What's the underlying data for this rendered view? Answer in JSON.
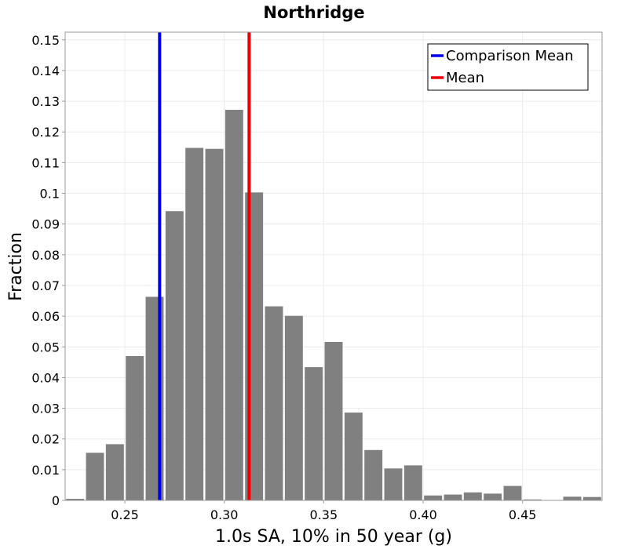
{
  "chart_data": {
    "type": "bar",
    "title": "Northridge",
    "xlabel": "1.0s SA, 10% in 50 year (g)",
    "ylabel": "Fraction",
    "xlim": [
      0.22,
      0.49
    ],
    "ylim": [
      0,
      0.1525
    ],
    "grid": true,
    "legend_position": "top-right",
    "bin_width": 0.01,
    "bins": [
      {
        "x": 0.225,
        "value": 0.0005
      },
      {
        "x": 0.235,
        "value": 0.0155
      },
      {
        "x": 0.245,
        "value": 0.0183
      },
      {
        "x": 0.255,
        "value": 0.047
      },
      {
        "x": 0.265,
        "value": 0.0663
      },
      {
        "x": 0.275,
        "value": 0.0942
      },
      {
        "x": 0.285,
        "value": 0.1148
      },
      {
        "x": 0.295,
        "value": 0.1145
      },
      {
        "x": 0.305,
        "value": 0.1272
      },
      {
        "x": 0.315,
        "value": 0.1003
      },
      {
        "x": 0.325,
        "value": 0.0632
      },
      {
        "x": 0.335,
        "value": 0.0601
      },
      {
        "x": 0.345,
        "value": 0.0434
      },
      {
        "x": 0.355,
        "value": 0.0516
      },
      {
        "x": 0.365,
        "value": 0.0286
      },
      {
        "x": 0.375,
        "value": 0.0164
      },
      {
        "x": 0.385,
        "value": 0.0104
      },
      {
        "x": 0.395,
        "value": 0.0114
      },
      {
        "x": 0.405,
        "value": 0.0016
      },
      {
        "x": 0.415,
        "value": 0.0019
      },
      {
        "x": 0.425,
        "value": 0.0026
      },
      {
        "x": 0.435,
        "value": 0.0022
      },
      {
        "x": 0.445,
        "value": 0.0047
      },
      {
        "x": 0.455,
        "value": 0.0003
      },
      {
        "x": 0.465,
        "value": 0.0
      },
      {
        "x": 0.475,
        "value": 0.0012
      },
      {
        "x": 0.485,
        "value": 0.0011
      }
    ],
    "bar_color": "#808080",
    "vlines": [
      {
        "name": "Comparison Mean",
        "x": 0.2675,
        "color": "#0000ee"
      },
      {
        "name": "Mean",
        "x": 0.3125,
        "color": "#ee0000"
      }
    ],
    "x_ticks": [
      0.25,
      0.3,
      0.35,
      0.4,
      0.45
    ],
    "x_tick_labels": [
      "0.25",
      "0.30",
      "0.35",
      "0.40",
      "0.45"
    ],
    "y_ticks": [
      0,
      0.01,
      0.02,
      0.03,
      0.04,
      0.05,
      0.06,
      0.07,
      0.08,
      0.09,
      0.1,
      0.11,
      0.12,
      0.13,
      0.14,
      0.15
    ],
    "y_tick_labels": [
      "0",
      "0.01",
      "0.02",
      "0.03",
      "0.04",
      "0.05",
      "0.06",
      "0.07",
      "0.08",
      "0.09",
      "0.1",
      "0.11",
      "0.12",
      "0.13",
      "0.14",
      "0.15"
    ]
  }
}
